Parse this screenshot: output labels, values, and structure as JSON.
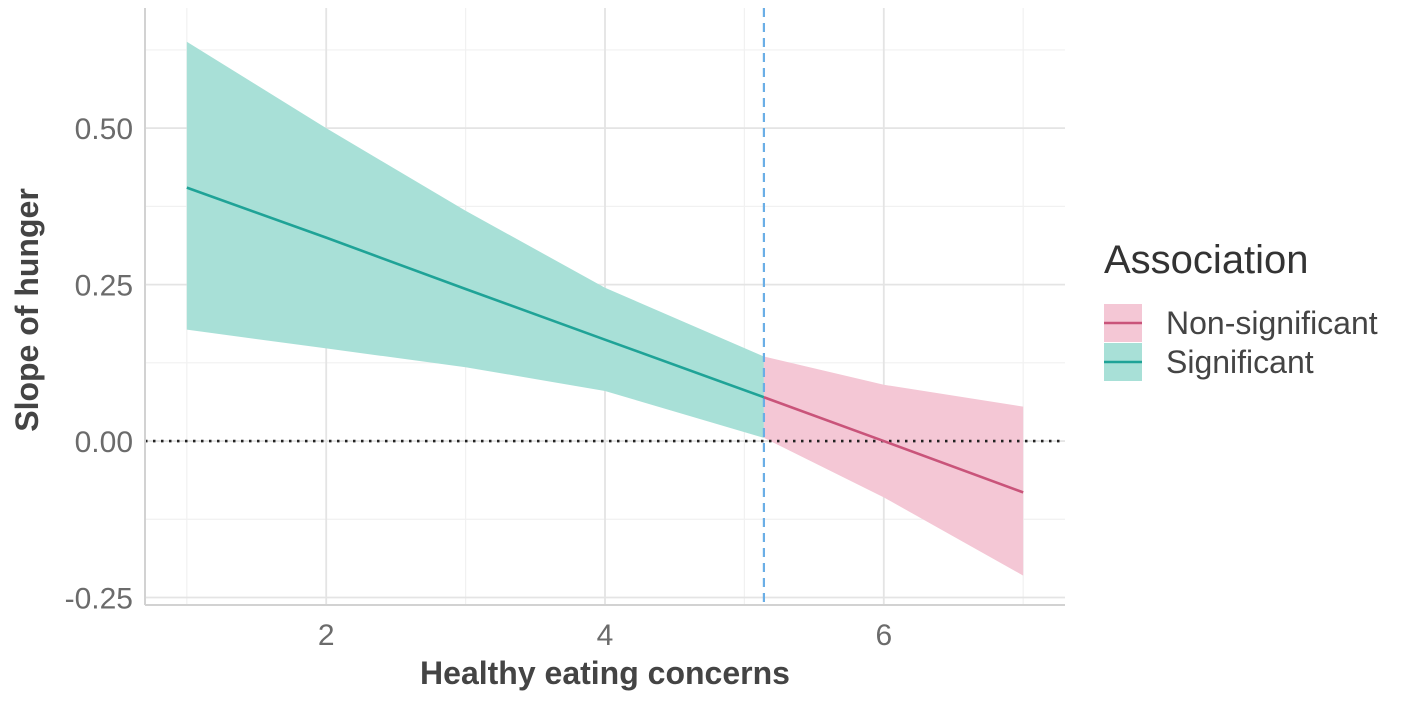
{
  "chart_data": {
    "type": "line",
    "title": "",
    "xlabel": "Healthy eating concerns",
    "ylabel": "Slope of hunger",
    "xlim": [
      0.7,
      7.3
    ],
    "ylim": [
      -0.262,
      0.692
    ],
    "x_ticks": [
      2,
      4,
      6
    ],
    "x_tick_labels": [
      "2",
      "4",
      "6"
    ],
    "y_ticks": [
      -0.25,
      0,
      0.25,
      0.5
    ],
    "y_tick_labels": [
      "-0.25",
      "0.00",
      "0.25",
      "0.50"
    ],
    "x_minor_ticks": [
      1,
      3,
      5,
      7
    ],
    "y_minor_ticks": [
      -0.125,
      0.125,
      0.375,
      0.625
    ],
    "grid": true,
    "reference_hline": {
      "y": 0,
      "style": "dotted",
      "color": "#222222"
    },
    "threshold_vline": {
      "x": 5.14,
      "style": "dashed",
      "color": "#6aaee6"
    },
    "legend": {
      "title": "Association",
      "position": "right",
      "entries": [
        {
          "label": "Non-significant",
          "color": "#c9547a",
          "fill": "#f4c7d5"
        },
        {
          "label": "Significant",
          "color": "#1fa397",
          "fill": "#a8e0d7"
        }
      ]
    },
    "series": [
      {
        "name": "Significant",
        "color": "#1fa397",
        "fill": "#a8e0d7",
        "x": [
          1.0,
          2.0,
          3.0,
          4.0,
          5.14
        ],
        "y": [
          0.405,
          0.325,
          0.243,
          0.162,
          0.07
        ],
        "ci_lower": [
          0.178,
          0.148,
          0.118,
          0.08,
          0.005
        ],
        "ci_upper": [
          0.638,
          0.5,
          0.368,
          0.245,
          0.135
        ]
      },
      {
        "name": "Non-significant",
        "color": "#c9547a",
        "fill": "#f4c7d5",
        "x": [
          5.14,
          6.0,
          7.0
        ],
        "y": [
          0.07,
          0.0,
          -0.082
        ],
        "ci_lower": [
          0.005,
          -0.09,
          -0.215
        ],
        "ci_upper": [
          0.135,
          0.09,
          0.055
        ]
      }
    ]
  }
}
